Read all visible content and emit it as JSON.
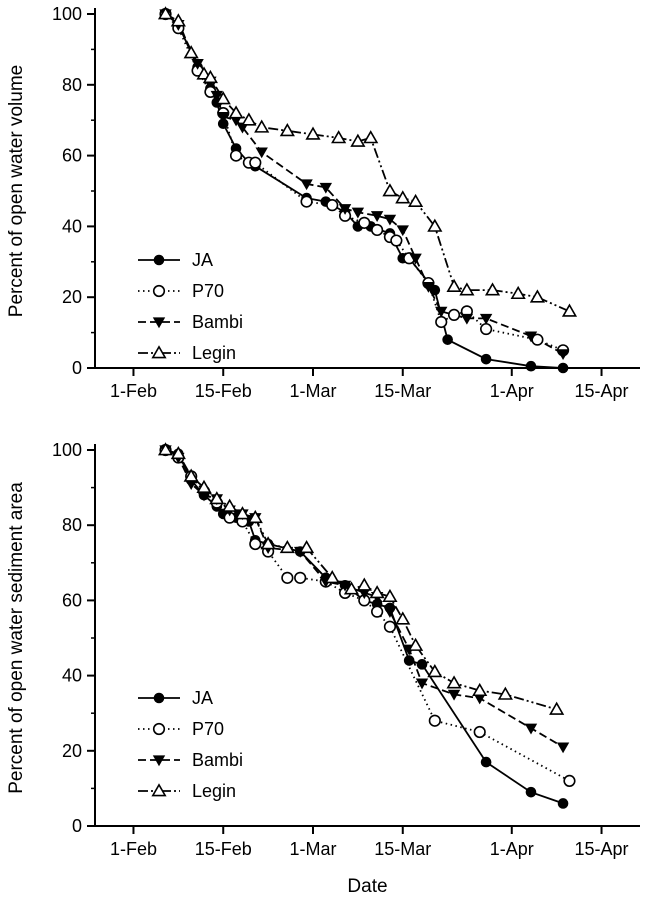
{
  "figure": {
    "background_color": "#ffffff",
    "line_color": "#000000"
  },
  "chart_data": [
    {
      "type": "line",
      "title": "",
      "xlabel": "",
      "ylabel": "Percent of open water volume",
      "xlim": [
        -6,
        79
      ],
      "ylim": [
        0,
        100
      ],
      "grid": false,
      "legend_position": "lower-left",
      "x_ticks": [
        {
          "value": 0,
          "label": "1-Feb"
        },
        {
          "value": 14,
          "label": "15-Feb"
        },
        {
          "value": 28,
          "label": "1-Mar"
        },
        {
          "value": 42,
          "label": "15-Mar"
        },
        {
          "value": 59,
          "label": "1-Apr"
        },
        {
          "value": 73,
          "label": "15-Apr"
        }
      ],
      "y_ticks": [
        0,
        20,
        40,
        60,
        80,
        100
      ],
      "y_minor_ticks": [
        10,
        30,
        50,
        70,
        90
      ],
      "series": [
        {
          "name": "JA",
          "marker": "filled-circle",
          "line": "solid",
          "points": [
            [
              5,
              100
            ],
            [
              7,
              97
            ],
            [
              10,
              85
            ],
            [
              12,
              79
            ],
            [
              13,
              75
            ],
            [
              14,
              69
            ],
            [
              16,
              62
            ],
            [
              18,
              58
            ],
            [
              19,
              57
            ],
            [
              27,
              48
            ],
            [
              30,
              47
            ],
            [
              33,
              44
            ],
            [
              35,
              40
            ],
            [
              37,
              40
            ],
            [
              40,
              38
            ],
            [
              42,
              31
            ],
            [
              43,
              31
            ],
            [
              47,
              22
            ],
            [
              49,
              8
            ],
            [
              55,
              2.5
            ],
            [
              62,
              0.5
            ],
            [
              67,
              0
            ]
          ]
        },
        {
          "name": "P70",
          "marker": "open-circle",
          "line": "dotted",
          "points": [
            [
              5,
              100
            ],
            [
              7,
              96
            ],
            [
              10,
              84
            ],
            [
              12,
              78
            ],
            [
              14,
              72
            ],
            [
              16,
              60
            ],
            [
              18,
              58
            ],
            [
              19,
              58
            ],
            [
              27,
              47
            ],
            [
              31,
              46
            ],
            [
              33,
              43
            ],
            [
              36,
              41
            ],
            [
              38,
              39
            ],
            [
              40,
              37
            ],
            [
              41,
              36
            ],
            [
              43,
              31
            ],
            [
              46,
              24
            ],
            [
              48,
              13
            ],
            [
              50,
              15
            ],
            [
              52,
              16
            ],
            [
              55,
              11
            ],
            [
              63,
              8
            ],
            [
              67,
              5
            ]
          ]
        },
        {
          "name": "Bambi",
          "marker": "filled-triangle-down",
          "line": "dashed",
          "points": [
            [
              5,
              100
            ],
            [
              7,
              97
            ],
            [
              10,
              86
            ],
            [
              12,
              81
            ],
            [
              13,
              77
            ],
            [
              14,
              71
            ],
            [
              16,
              70
            ],
            [
              17,
              68
            ],
            [
              20,
              61
            ],
            [
              27,
              52
            ],
            [
              30,
              51
            ],
            [
              33,
              45
            ],
            [
              35,
              44
            ],
            [
              38,
              43
            ],
            [
              40,
              42
            ],
            [
              42,
              39
            ],
            [
              44,
              31
            ],
            [
              46,
              23
            ],
            [
              48,
              16
            ],
            [
              52,
              14
            ],
            [
              55,
              14
            ],
            [
              62,
              9
            ],
            [
              67,
              4
            ]
          ]
        },
        {
          "name": "Legin",
          "marker": "open-triangle-up",
          "line": "dash-dot-dot",
          "points": [
            [
              5,
              100
            ],
            [
              7,
              98
            ],
            [
              9,
              89
            ],
            [
              11,
              83
            ],
            [
              12,
              82
            ],
            [
              14,
              76
            ],
            [
              16,
              72
            ],
            [
              18,
              70
            ],
            [
              20,
              68
            ],
            [
              24,
              67
            ],
            [
              28,
              66
            ],
            [
              32,
              65
            ],
            [
              35,
              64
            ],
            [
              37,
              65
            ],
            [
              40,
              50
            ],
            [
              42,
              48
            ],
            [
              44,
              47
            ],
            [
              47,
              40
            ],
            [
              50,
              23
            ],
            [
              52,
              22
            ],
            [
              56,
              22
            ],
            [
              60,
              21
            ],
            [
              63,
              20
            ],
            [
              68,
              16
            ]
          ]
        }
      ]
    },
    {
      "type": "line",
      "title": "",
      "xlabel": "Date",
      "ylabel": "Percent of open water sediment area",
      "xlim": [
        -6,
        79
      ],
      "ylim": [
        0,
        100
      ],
      "grid": false,
      "legend_position": "lower-left",
      "x_ticks": [
        {
          "value": 0,
          "label": "1-Feb"
        },
        {
          "value": 14,
          "label": "15-Feb"
        },
        {
          "value": 28,
          "label": "1-Mar"
        },
        {
          "value": 42,
          "label": "15-Mar"
        },
        {
          "value": 59,
          "label": "1-Apr"
        },
        {
          "value": 73,
          "label": "15-Apr"
        }
      ],
      "y_ticks": [
        0,
        20,
        40,
        60,
        80,
        100
      ],
      "y_minor_ticks": [
        10,
        30,
        50,
        70,
        90
      ],
      "series": [
        {
          "name": "JA",
          "marker": "filled-circle",
          "line": "solid",
          "points": [
            [
              5,
              100
            ],
            [
              7,
              99
            ],
            [
              9,
              92
            ],
            [
              11,
              88
            ],
            [
              13,
              85
            ],
            [
              14,
              83
            ],
            [
              16,
              82
            ],
            [
              18,
              81
            ],
            [
              19,
              76
            ],
            [
              21,
              75
            ],
            [
              26,
              73
            ],
            [
              30,
              66
            ],
            [
              33,
              64
            ],
            [
              36,
              60
            ],
            [
              38,
              59
            ],
            [
              40,
              58
            ],
            [
              43,
              44
            ],
            [
              45,
              43
            ],
            [
              55,
              17
            ],
            [
              62,
              9
            ],
            [
              67,
              6
            ]
          ]
        },
        {
          "name": "P70",
          "marker": "open-circle",
          "line": "dotted",
          "points": [
            [
              5,
              100
            ],
            [
              7,
              98
            ],
            [
              9,
              93
            ],
            [
              11,
              89
            ],
            [
              13,
              86
            ],
            [
              15,
              82
            ],
            [
              17,
              81
            ],
            [
              19,
              75
            ],
            [
              21,
              73
            ],
            [
              24,
              66
            ],
            [
              26,
              66
            ],
            [
              30,
              65
            ],
            [
              33,
              62
            ],
            [
              36,
              60
            ],
            [
              38,
              57
            ],
            [
              40,
              53
            ],
            [
              47,
              28
            ],
            [
              54,
              25
            ],
            [
              68,
              12
            ]
          ]
        },
        {
          "name": "Bambi",
          "marker": "filled-triangle-down",
          "line": "dashed",
          "points": [
            [
              5,
              100
            ],
            [
              7,
              98
            ],
            [
              9,
              91
            ],
            [
              11,
              88
            ],
            [
              13,
              87
            ],
            [
              15,
              84
            ],
            [
              17,
              83
            ],
            [
              19,
              82
            ],
            [
              21,
              74
            ],
            [
              26,
              73
            ],
            [
              30,
              65
            ],
            [
              33,
              64
            ],
            [
              36,
              62
            ],
            [
              38,
              61
            ],
            [
              40,
              57
            ],
            [
              43,
              47
            ],
            [
              45,
              38
            ],
            [
              50,
              35
            ],
            [
              54,
              34
            ],
            [
              62,
              26
            ],
            [
              67,
              21
            ]
          ]
        },
        {
          "name": "Legin",
          "marker": "open-triangle-up",
          "line": "dash-dot-dot",
          "points": [
            [
              5,
              100
            ],
            [
              7,
              99
            ],
            [
              9,
              93
            ],
            [
              11,
              90
            ],
            [
              13,
              87
            ],
            [
              15,
              85
            ],
            [
              17,
              83
            ],
            [
              19,
              82
            ],
            [
              21,
              75
            ],
            [
              24,
              74
            ],
            [
              27,
              74
            ],
            [
              31,
              66
            ],
            [
              34,
              63
            ],
            [
              36,
              64
            ],
            [
              38,
              62
            ],
            [
              40,
              61
            ],
            [
              42,
              55
            ],
            [
              44,
              48
            ],
            [
              47,
              41
            ],
            [
              50,
              38
            ],
            [
              54,
              36
            ],
            [
              58,
              35
            ],
            [
              66,
              31
            ]
          ]
        }
      ]
    }
  ]
}
